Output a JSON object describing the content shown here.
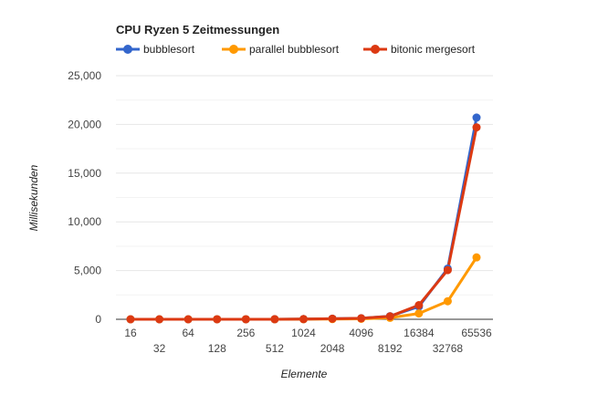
{
  "chart_data": {
    "type": "line",
    "title": "CPU Ryzen 5 Zeitmessungen",
    "xlabel": "Elemente",
    "ylabel": "Millisekunden",
    "categories": [
      "16",
      "32",
      "64",
      "128",
      "256",
      "512",
      "1024",
      "2048",
      "4096",
      "8192",
      "16384",
      "32768",
      "65536"
    ],
    "ylim": [
      0,
      25000
    ],
    "yticks": [
      0,
      5000,
      10000,
      15000,
      20000,
      25000
    ],
    "ytick_labels": [
      "0",
      "5,000",
      "10,000",
      "15,000",
      "20,000",
      "25,000"
    ],
    "grid": true,
    "legend_position": "top",
    "series": [
      {
        "name": "bubblesort",
        "color": "#3366cc",
        "values": [
          0,
          0,
          0,
          1,
          2,
          6,
          20,
          60,
          100,
          320,
          1300,
          5200,
          20700
        ]
      },
      {
        "name": "parallel bubblesort",
        "color": "#ff9900",
        "values": [
          0,
          0,
          0,
          1,
          1,
          3,
          8,
          20,
          50,
          150,
          600,
          1850,
          6350
        ]
      },
      {
        "name": "bitonic mergesort",
        "color": "#dc3912",
        "values": [
          0,
          0,
          0,
          1,
          2,
          6,
          20,
          60,
          100,
          300,
          1450,
          5050,
          19700
        ]
      }
    ]
  }
}
